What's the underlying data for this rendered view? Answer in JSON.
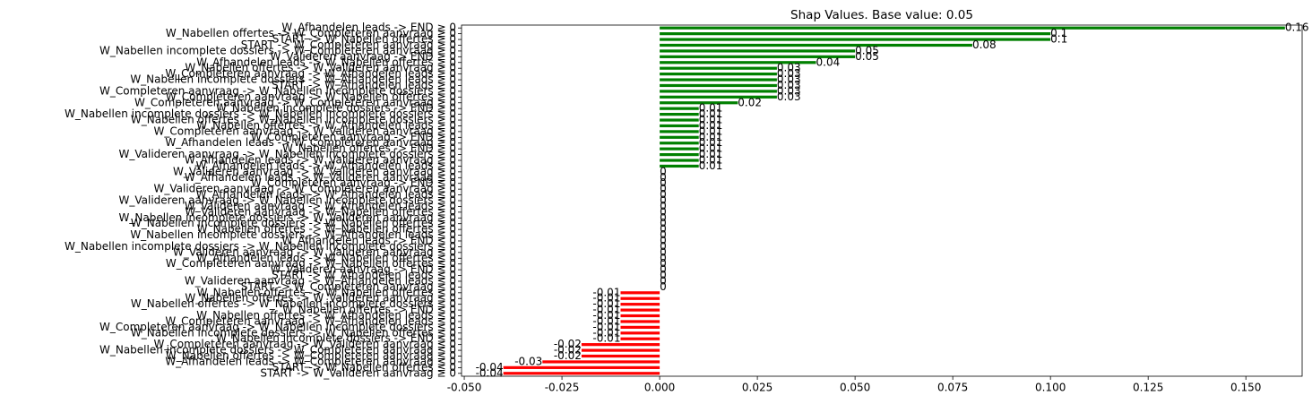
{
  "chart_data": {
    "type": "barh",
    "title": "Shap Values. Base value: 0.05",
    "categories": [
      "W_Afhandelen leads -> END ≥ 0",
      "W_Nabellen offertes -> W_Completeren aanvraag ≥ 0",
      "START -> W_Nabellen offertes ≥ 0",
      "START -> W_Completeren aanvraag ≥ 0",
      "W_Nabellen incomplete dossiers -> W_Completeren aanvraag ≥ 0",
      "W_Valideren aanvraag -> END ≥ 0",
      "W_Afhandelen leads -> W_Nabellen offertes ≥ 0",
      "W_Nabellen offertes -> W_Valideren aanvraag ≥ 0",
      "W_Completeren aanvraag -> W_Afhandelen leads ≥ 0",
      "W_Nabellen incomplete dossiers -> W_Afhandelen leads ≥ 0",
      "START -> W_Afhandelen leads ≥ 0",
      "W_Completeren aanvraag -> W_Nabellen incomplete dossiers ≥ 0",
      "W_Completeren aanvraag -> W_Nabellen offertes ≥ 0",
      "W_Completeren aanvraag -> W_Completeren aanvraag ≥ 0",
      "W_Nabellen incomplete dossiers -> END ≥ 0",
      "W_Nabellen incomplete dossiers -> W_Nabellen incomplete dossiers ≥ 0",
      "W_Nabellen offertes -> W_Nabellen incomplete dossiers ≥ 0",
      "W_Nabellen offertes -> W_Afhandelen leads ≥ 0",
      "W_Completeren aanvraag -> W_Valideren aanvraag ≥ 0",
      "W_Completeren aanvraag -> END ≥ 0",
      "W_Afhandelen leads -> W_Completeren aanvraag ≥ 0",
      "W_Nabellen offertes -> END ≥ 0",
      "W_Valideren aanvraag -> W_Nabellen incomplete dossiers ≥ 0",
      "W_Afhandelen leads -> W_Valideren aanvraag ≥ 0",
      "W_Afhandelen leads -> W_Afhandelen leads ≥ 0",
      "W_Valideren aanvraag -> W_Valideren aanvraag ≥ 0",
      "W_Afhandelen leads -> W_Valideren aanvraag ≤ 0",
      "W_Completeren aanvraag -> END ≤ 0",
      "W_Valideren aanvraag -> W_Completeren aanvraag ≥ 0",
      "W_Afhandelen leads -> W_Afhandelen leads ≤ 0",
      "W_Valideren aanvraag -> W_Nabellen incomplete dossiers ≤ 0",
      "W_Valideren aanvraag -> W_Afhandelen leads ≥ 0",
      "W_Valideren aanvraag -> W_Nabellen offertes ≥ 0",
      "W_Nabellen incomplete dossiers -> W_Valideren aanvraag ≥ 0",
      "W_Nabellen incomplete dossiers -> W_Nabellen offertes ≥ 0",
      "W_Nabellen offertes -> W_Nabellen offertes ≥ 0",
      "W_Nabellen incomplete dossiers -> W_Afhandelen leads ≤ 0",
      "W_Afhandelen leads -> END ≤ 0",
      "W_Nabellen incomplete dossiers -> W_Nabellen incomplete dossiers ≤ 0",
      "W_Valideren aanvraag -> W_Valideren aanvraag ≤ 0",
      "W_Afhandelen leads -> W_Nabellen offertes ≤ 0",
      "W_Completeren aanvraag -> W_Nabellen offertes ≤ 0",
      "W_Valideren aanvraag -> END ≤ 0",
      "START -> W_Afhandelen leads ≤ 0",
      "W_Valideren aanvraag -> W_Afhandelen leads ≤ 0",
      "START -> W_Completeren aanvraag ≤ 0",
      "W_Nabellen offertes -> W_Nabellen offertes ≤ 0",
      "W_Nabellen offertes -> W_Valideren aanvraag ≤ 0",
      "W_Nabellen offertes -> W_Nabellen incomplete dossiers ≤ 0",
      "W_Nabellen offertes -> END ≤ 0",
      "W_Nabellen offertes -> W_Afhandelen leads ≤ 0",
      "W_Completeren aanvraag -> W_Afhandelen leads ≤ 0",
      "W_Completeren aanvraag -> W_Nabellen incomplete dossiers ≤ 0",
      "W_Nabellen incomplete dossiers -> W_Nabellen offertes ≤ 0",
      "W_Nabellen incomplete dossiers -> END ≤ 0",
      "W_Completeren aanvraag -> W_Valideren aanvraag ≤ 0",
      "W_Nabellen incomplete dossiers -> W_Completeren aanvraag ≤ 0",
      "W_Nabellen offertes -> W_Completeren aanvraag ≤ 0",
      "W_Afhandelen leads -> W_Completeren aanvraag ≤ 0",
      "START -> W_Nabellen offertes ≤ 0",
      "START -> W_Valideren aanvraag ≥ 0"
    ],
    "values": [
      0.16,
      0.1,
      0.1,
      0.08,
      0.05,
      0.05,
      0.04,
      0.03,
      0.03,
      0.03,
      0.03,
      0.03,
      0.03,
      0.02,
      0.01,
      0.01,
      0.01,
      0.01,
      0.01,
      0.01,
      0.01,
      0.01,
      0.01,
      0.01,
      0.01,
      0,
      0,
      0,
      0,
      0,
      0,
      0,
      0,
      0,
      0,
      0,
      0,
      0,
      0,
      0,
      0,
      0,
      0,
      0,
      0,
      0,
      -0.01,
      -0.01,
      -0.01,
      -0.01,
      -0.01,
      -0.01,
      -0.01,
      -0.01,
      -0.01,
      -0.02,
      -0.02,
      -0.02,
      -0.03,
      -0.04,
      -0.04
    ],
    "color_positive": "#008000",
    "color_negative": "#ff0000",
    "xlim": [
      -0.0507,
      0.1644
    ],
    "xticks": [
      {
        "value": -0.05,
        "label": "-0.050"
      },
      {
        "value": -0.025,
        "label": "-0.025"
      },
      {
        "value": 0,
        "label": "0.000"
      },
      {
        "value": 0.025,
        "label": "0.025"
      },
      {
        "value": 0.05,
        "label": "0.050"
      },
      {
        "value": 0.075,
        "label": "0.075"
      },
      {
        "value": 0.1,
        "label": "0.100"
      },
      {
        "value": 0.125,
        "label": "0.125"
      },
      {
        "value": 0.15,
        "label": "0.150"
      }
    ]
  }
}
